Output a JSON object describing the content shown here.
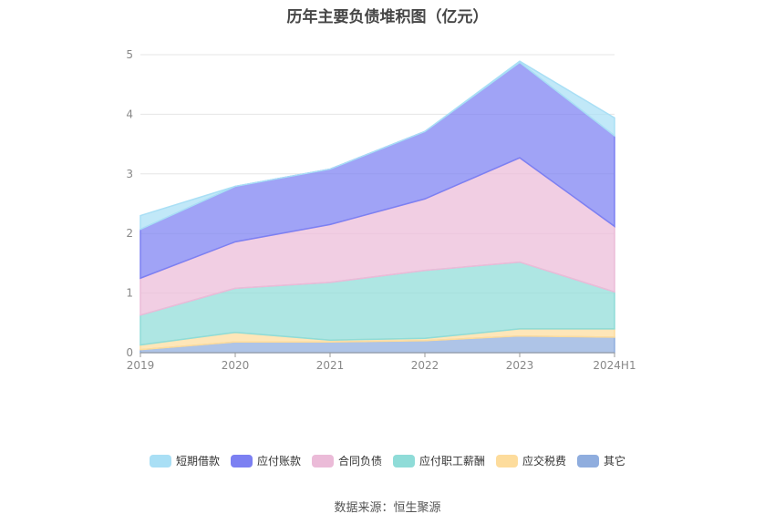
{
  "chart_data": {
    "type": "area",
    "stacked": true,
    "title": "历年主要负债堆积图（亿元）",
    "categories": [
      "2019",
      "2020",
      "2021",
      "2022",
      "2023",
      "2024H1"
    ],
    "ylim": [
      0,
      5
    ],
    "yticks": [
      "0",
      "1",
      "2",
      "3",
      "4",
      "5"
    ],
    "grid": true,
    "legend_position": "bottom",
    "series": [
      {
        "name": "其它",
        "color": "#8fadde",
        "values": [
          0.05,
          0.18,
          0.18,
          0.2,
          0.28,
          0.26
        ]
      },
      {
        "name": "应交税费",
        "color": "#fddc9c",
        "values": [
          0.08,
          0.16,
          0.03,
          0.04,
          0.12,
          0.14
        ]
      },
      {
        "name": "应付职工薪酬",
        "color": "#8fdcd8",
        "values": [
          0.5,
          0.74,
          0.97,
          1.14,
          1.12,
          0.62
        ]
      },
      {
        "name": "合同负债",
        "color": "#ebbbd8",
        "values": [
          0.62,
          0.78,
          0.97,
          1.2,
          1.75,
          1.1
        ]
      },
      {
        "name": "应付账款",
        "color": "#7c80f2",
        "values": [
          0.82,
          0.93,
          0.93,
          1.13,
          1.6,
          1.52
        ]
      },
      {
        "name": "短期借款",
        "color": "#a9dff5",
        "values": [
          0.23,
          0.0,
          0.0,
          0.0,
          0.02,
          0.3
        ]
      }
    ],
    "legend_order": [
      "短期借款",
      "应付账款",
      "合同负债",
      "应付职工薪酬",
      "应交税费",
      "其它"
    ]
  },
  "source_text": "数据来源：恒生聚源"
}
